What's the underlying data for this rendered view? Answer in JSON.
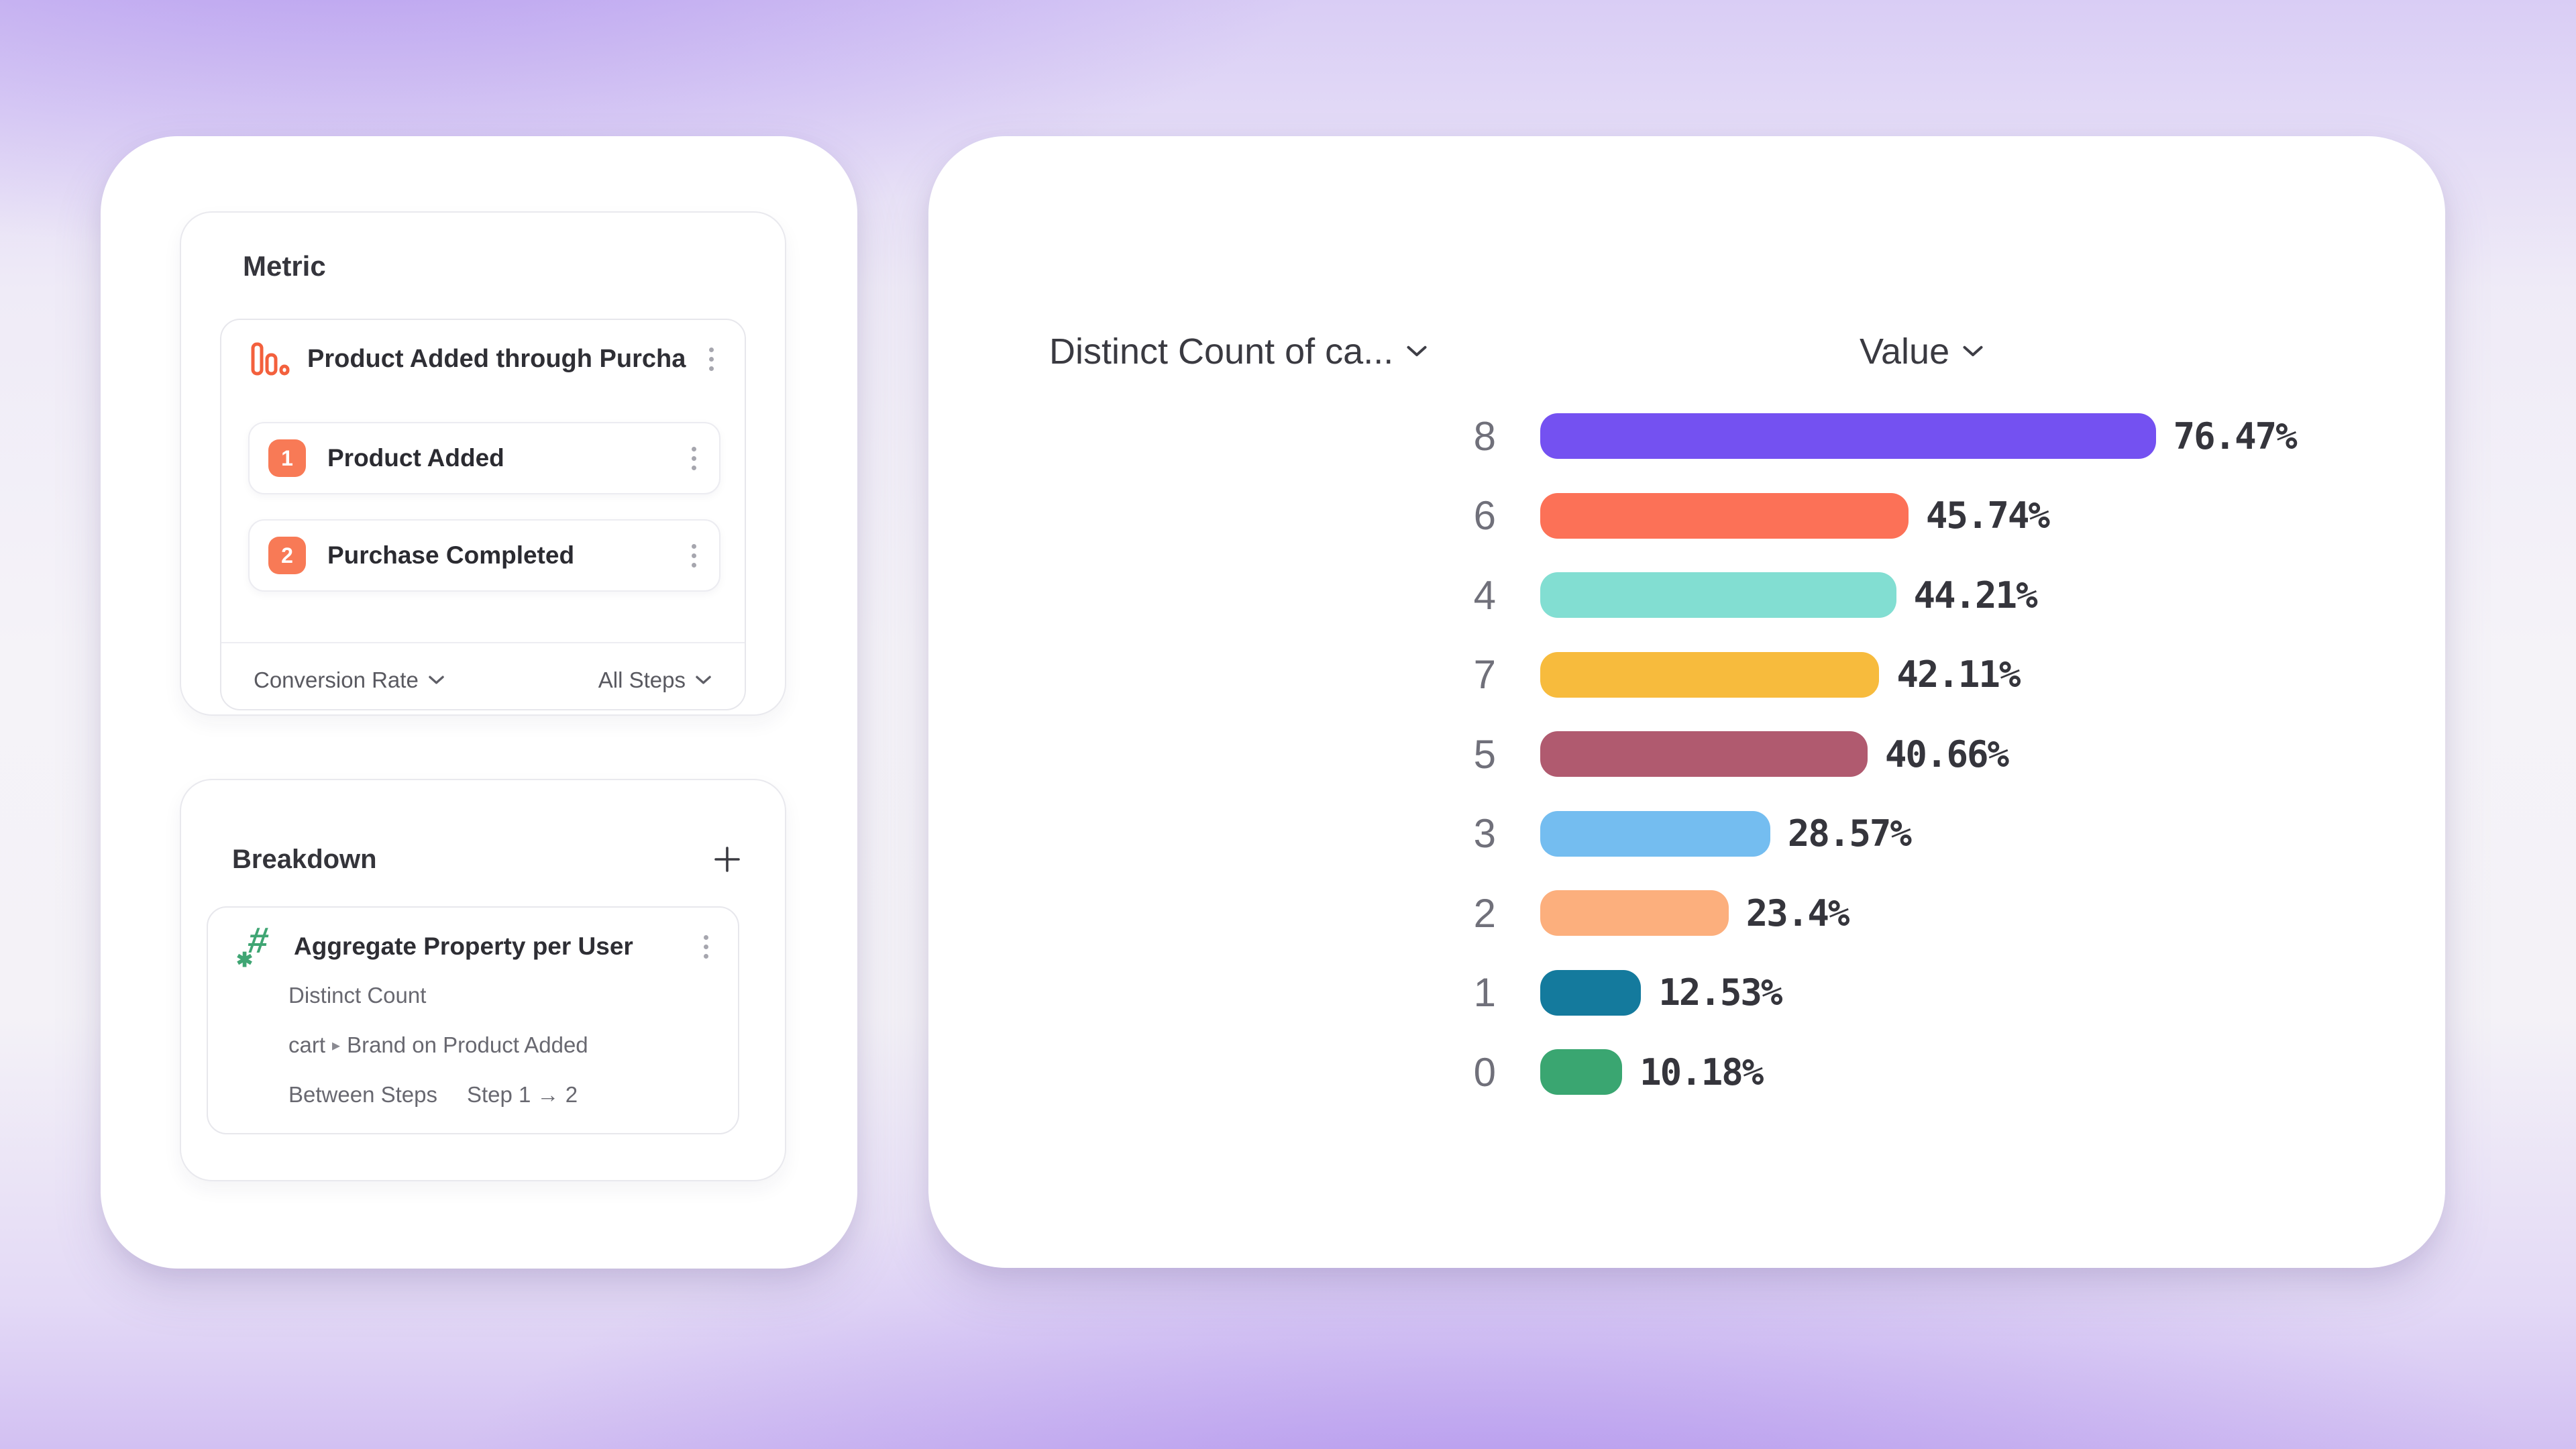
{
  "colors": {
    "accent_coral": "#F87A56",
    "funnel_icon_orange": "#F3603D",
    "icon_green": "#3FA573",
    "panel_bg": "#FFFFFF"
  },
  "metric": {
    "title": "Metric",
    "funnel": {
      "name": "Product Added through Purcha...",
      "steps": [
        {
          "num": "1",
          "label": "Product Added"
        },
        {
          "num": "2",
          "label": "Purchase Completed"
        }
      ],
      "footer_left": "Conversion Rate",
      "footer_right": "All Steps"
    }
  },
  "breakdown": {
    "title": "Breakdown",
    "item": {
      "name": "Aggregate Property per User",
      "aggregation": "Distinct Count",
      "path_prefix": "cart",
      "path_separator": "▸",
      "path_name": "Brand on Product Added",
      "between_label": "Between Steps",
      "steps_label": "Step 1 → 2"
    }
  },
  "chart_data": {
    "type": "bar",
    "orientation": "horizontal",
    "column_headers": {
      "category": "Distinct Count of ca...",
      "value": "Value"
    },
    "categories": [
      "8",
      "6",
      "4",
      "7",
      "5",
      "3",
      "2",
      "1",
      "0"
    ],
    "values": [
      76.47,
      45.74,
      44.21,
      42.11,
      40.66,
      28.57,
      23.4,
      12.53,
      10.18
    ],
    "value_labels": [
      "76.47%",
      "45.74%",
      "44.21%",
      "42.11%",
      "40.66%",
      "28.57%",
      "23.4%",
      "12.53%",
      "10.18%"
    ],
    "bar_colors": [
      "#7451F1",
      "#FC7157",
      "#82DED2",
      "#F7BB3D",
      "#B05A6F",
      "#74BDF0",
      "#FCAF7D",
      "#147A9D",
      "#3AA671"
    ],
    "xlim": [
      0,
      100
    ],
    "grid": false,
    "legend": "none"
  }
}
